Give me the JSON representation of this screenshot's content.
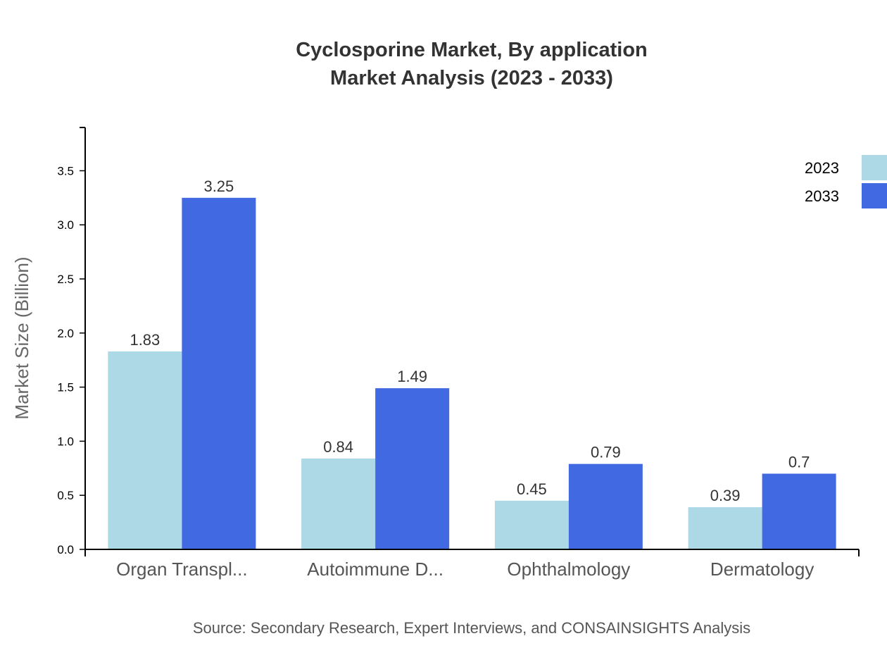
{
  "chart_data": {
    "type": "bar",
    "title": "Cyclosporine Market, By application",
    "subtitle": "Market Analysis (2023 - 2033)",
    "xlabel": "",
    "ylabel": "Market Size (Billion)",
    "ylim": [
      0,
      3.9
    ],
    "yticks": [
      "0.0",
      "0.5",
      "1.0",
      "1.5",
      "2.0",
      "2.5",
      "3.0",
      "3.5"
    ],
    "categories": [
      "Organ Transpl...",
      "Autoimmune D...",
      "Ophthalmology",
      "Dermatology"
    ],
    "series": [
      {
        "name": "2023",
        "color": "#add8e6",
        "values": [
          1.83,
          0.84,
          0.45,
          0.39
        ],
        "labels": [
          "1.83",
          "0.84",
          "0.45",
          "0.39"
        ]
      },
      {
        "name": "2033",
        "color": "#4169e1",
        "values": [
          3.25,
          1.49,
          0.79,
          0.7
        ],
        "labels": [
          "3.25",
          "1.49",
          "0.79",
          "0.7"
        ]
      }
    ],
    "grid": false,
    "legend": "top-right",
    "source": "Source: Secondary Research, Expert Interviews, and CONSAINSIGHTS Analysis"
  }
}
